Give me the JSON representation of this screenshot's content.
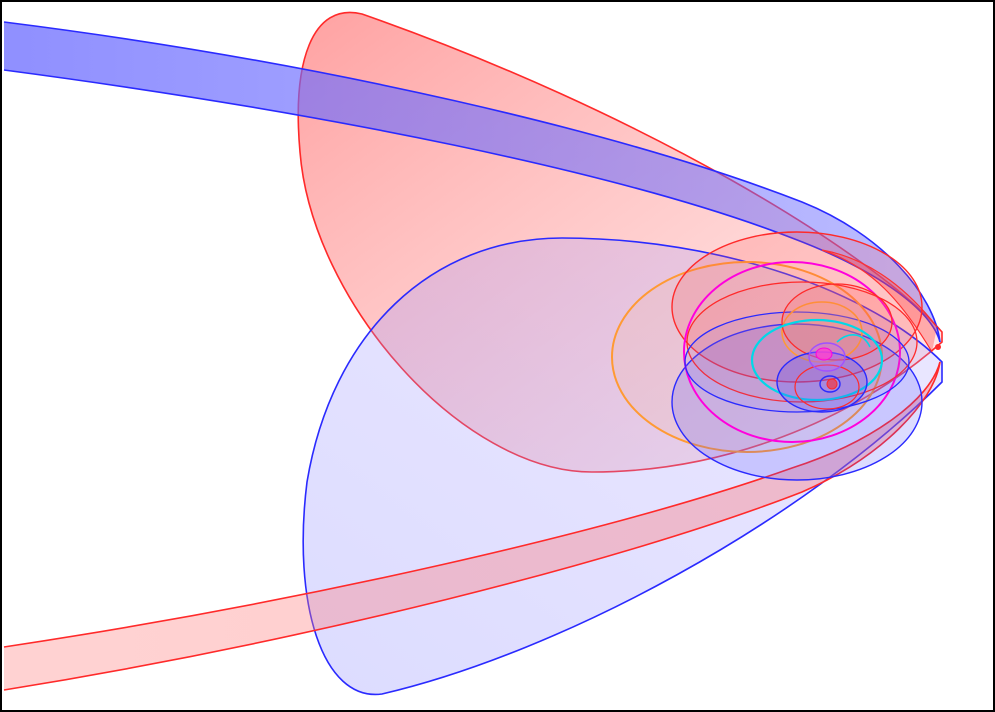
{
  "colors": {
    "background": "#ffffff",
    "frame": "#000000",
    "red": "#ff2a2a",
    "blue": "#2a2aff",
    "orange": "#ff9a33",
    "magenta": "#ff00dd",
    "cyan": "#00d8e8",
    "violet": "#a050ff"
  }
}
